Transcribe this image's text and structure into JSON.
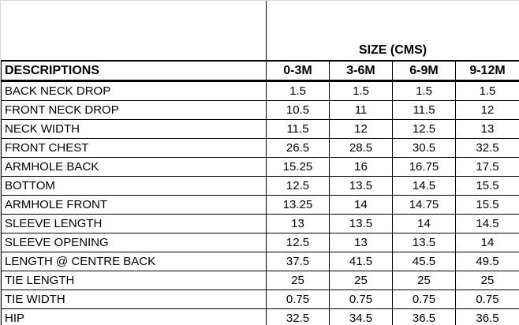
{
  "table": {
    "title": "SIZE (CMS)",
    "columns": [
      "DESCRIPTIONS",
      "0-3M",
      "3-6M",
      "6-9M",
      "9-12M"
    ],
    "rows": [
      {
        "label": "BACK NECK DROP",
        "values": [
          "1.5",
          "1.5",
          "1.5",
          "1.5"
        ]
      },
      {
        "label": "FRONT NECK DROP",
        "values": [
          "10.5",
          "11",
          "11.5",
          "12"
        ]
      },
      {
        "label": "NECK WIDTH",
        "values": [
          "11.5",
          "12",
          "12.5",
          "13"
        ]
      },
      {
        "label": "FRONT CHEST",
        "values": [
          "26.5",
          "28.5",
          "30.5",
          "32.5"
        ]
      },
      {
        "label": "ARMHOLE BACK",
        "values": [
          "15.25",
          "16",
          "16.75",
          "17.5"
        ]
      },
      {
        "label": "BOTTOM",
        "values": [
          "12.5",
          "13.5",
          "14.5",
          "15.5"
        ]
      },
      {
        "label": "ARMHOLE FRONT",
        "values": [
          "13.25",
          "14",
          "14.75",
          "15.5"
        ]
      },
      {
        "label": "SLEEVE LENGTH",
        "values": [
          "13",
          "13.5",
          "14",
          "14.5"
        ]
      },
      {
        "label": "SLEEVE OPENING",
        "values": [
          "12.5",
          "13",
          "13.5",
          "14"
        ]
      },
      {
        "label": "LENGTH @ CENTRE BACK",
        "values": [
          "37.5",
          "41.5",
          "45.5",
          "49.5"
        ]
      },
      {
        "label": "TIE LENGTH",
        "values": [
          "25",
          "25",
          "25",
          "25"
        ]
      },
      {
        "label": "TIE WIDTH",
        "values": [
          "0.75",
          "0.75",
          "0.75",
          "0.75"
        ]
      },
      {
        "label": "HIP",
        "values": [
          "32.5",
          "34.5",
          "36.5",
          "36.5"
        ]
      }
    ]
  },
  "colors": {
    "background": "#ffffff",
    "text": "#000000",
    "table_border": "#000000",
    "edge_gridline": "#d9d9d9"
  }
}
